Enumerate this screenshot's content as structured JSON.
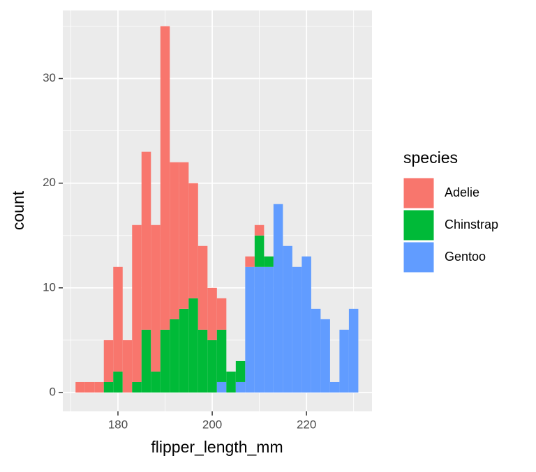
{
  "chart_data": {
    "type": "histogram",
    "x_label": "flipper_length_mm",
    "y_label": "count",
    "legend_title": "species",
    "legend_position": "right",
    "stacked": true,
    "grid": true,
    "background": "#EBEBEB",
    "bins": [
      171,
      173,
      175,
      177,
      179,
      181,
      183,
      185,
      187,
      189,
      191,
      193,
      195,
      197,
      199,
      201,
      203,
      205,
      207,
      209,
      211,
      213,
      215,
      217,
      219,
      221,
      223,
      225,
      227,
      229,
      231
    ],
    "series": [
      {
        "name": "Adelie",
        "color": "#F8766D",
        "values": [
          1,
          1,
          1,
          4,
          10,
          5,
          15,
          17,
          14,
          29,
          15,
          14,
          11,
          8,
          5,
          3,
          0,
          0,
          1,
          1,
          0,
          0,
          0,
          0,
          0,
          0,
          0,
          0,
          0,
          0
        ]
      },
      {
        "name": "Chinstrap",
        "color": "#00BA38",
        "values": [
          0,
          0,
          0,
          1,
          2,
          0,
          1,
          6,
          2,
          6,
          7,
          8,
          9,
          6,
          5,
          5,
          2,
          2,
          0,
          3,
          1,
          0,
          0,
          0,
          0,
          0,
          0,
          0,
          0,
          0
        ]
      },
      {
        "name": "Gentoo",
        "color": "#619CFF",
        "values": [
          0,
          0,
          0,
          0,
          0,
          0,
          0,
          0,
          0,
          0,
          0,
          0,
          0,
          0,
          0,
          1,
          0,
          1,
          12,
          12,
          12,
          18,
          14,
          12,
          13,
          8,
          7,
          1,
          6,
          8
        ]
      }
    ],
    "xlim": [
      168.3,
      233.9
    ],
    "ylim": [
      -1.8,
      36.5
    ],
    "xticks": [
      180,
      200,
      220
    ],
    "yticks": [
      0,
      10,
      20,
      30
    ],
    "x_minor_grid": [
      170,
      190,
      210,
      230
    ],
    "y_minor_grid": [
      5,
      15,
      25,
      35
    ]
  }
}
